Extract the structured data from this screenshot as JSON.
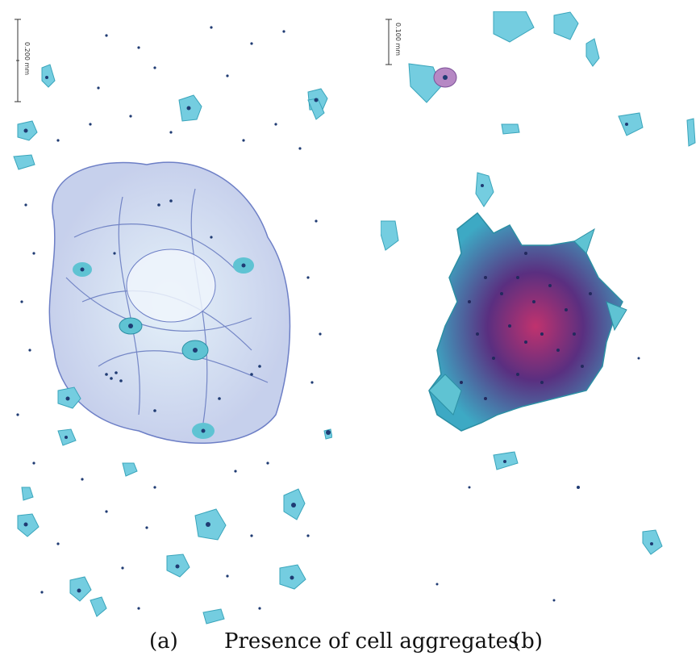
{
  "figure": {
    "caption_a": "(a)",
    "caption_title": "Presence of cell aggregates",
    "caption_b": "(b)"
  },
  "panel_a": {
    "scale_label": "0.200 mm"
  },
  "panel_b": {
    "scale_label": "0.100 mm"
  },
  "colors": {
    "cytoplasm_cyan": "#5fc3d3",
    "nucleus_navy": "#1f3b73",
    "mucus_blue": "#7d8fd0",
    "cluster_magenta": "#b4306a",
    "cluster_purple": "#4a2f7a"
  }
}
